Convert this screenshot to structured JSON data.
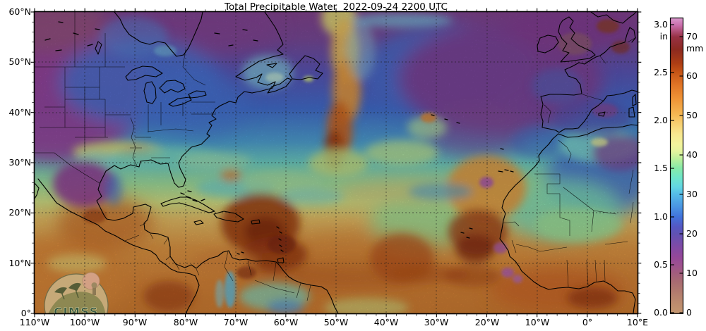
{
  "title": "Total Precipitable Water  2022-09-24 2200 UTC",
  "axes": {
    "lat": [
      "60°N",
      "50°N",
      "40°N",
      "30°N",
      "20°N",
      "10°N",
      "0°"
    ],
    "lon": [
      "110°W",
      "100°W",
      "90°W",
      "80°W",
      "70°W",
      "60°W",
      "50°W",
      "40°W",
      "30°W",
      "20°W",
      "10°W",
      "0°",
      "10°E"
    ]
  },
  "colorbar": {
    "in_unit": "in",
    "mm_unit": "mm",
    "in_ticks": [
      "3.0",
      "2.5",
      "2.0",
      "1.5",
      "1.0",
      "0.5",
      "0.0"
    ],
    "mm_ticks": [
      "70",
      "60",
      "50",
      "40",
      "30",
      "20",
      "10",
      "0"
    ],
    "in_range": [
      0.0,
      3.0
    ],
    "mm_range": [
      0,
      70
    ],
    "palette_low_to_high": [
      "#c49770",
      "#a86a72",
      "#9d5090",
      "#7e4aa6",
      "#5f52b4",
      "#4173dc",
      "#55bce8",
      "#63d8e2",
      "#86eaa8",
      "#b3ef9d",
      "#f3f49c",
      "#f8e78f",
      "#f6c868",
      "#f5b955",
      "#ef9336",
      "#c75617",
      "#8c2a20",
      "#973144",
      "#cb6fae",
      "#d998cc"
    ]
  },
  "logo": {
    "text": "CIMSS"
  }
}
